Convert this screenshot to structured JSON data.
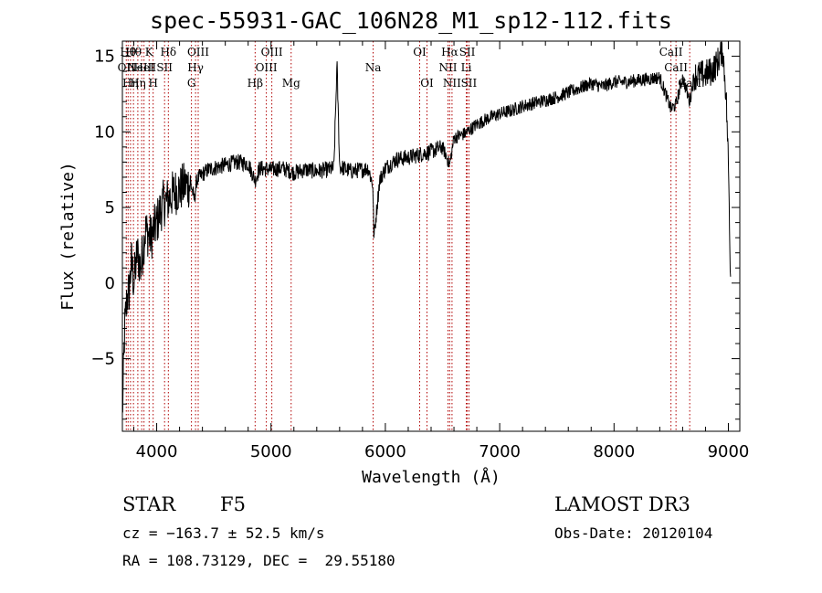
{
  "chart_data": {
    "type": "line",
    "title": "spec-55931-GAC_106N28_M1_sp12-112.fits",
    "xlabel": "Wavelength (Å)",
    "ylabel": "Flux (relative)",
    "xlim": [
      3700,
      9100
    ],
    "ylim": [
      -9.8,
      16
    ],
    "xticks": [
      4000,
      5000,
      6000,
      7000,
      8000,
      9000
    ],
    "yticks": [
      -5,
      0,
      5,
      10,
      15
    ],
    "series": [
      {
        "name": "spectrum",
        "x": [
          3700,
          3720,
          3740,
          3760,
          3780,
          3800,
          3830,
          3860,
          3900,
          3950,
          4000,
          4050,
          4100,
          4150,
          4200,
          4250,
          4300,
          4330,
          4350,
          4400,
          4450,
          4500,
          4600,
          4700,
          4800,
          4861,
          4900,
          5000,
          5100,
          5200,
          5300,
          5400,
          5500,
          5550,
          5577,
          5600,
          5700,
          5800,
          5850,
          5890,
          5900,
          5950,
          6000,
          6100,
          6200,
          6300,
          6400,
          6500,
          6563,
          6600,
          6700,
          6800,
          6900,
          7000,
          7100,
          7200,
          7300,
          7400,
          7500,
          7600,
          7700,
          7800,
          7900,
          8000,
          8100,
          8200,
          8300,
          8400,
          8498,
          8542,
          8600,
          8662,
          8700,
          8800,
          8850,
          8900,
          8950,
          8980,
          9000,
          9020
        ],
        "y": [
          -8.8,
          -3.0,
          -1.0,
          -0.5,
          1.5,
          0.0,
          2.0,
          1.0,
          3.5,
          3.0,
          4.0,
          5.2,
          5.5,
          6.0,
          6.2,
          6.5,
          6.5,
          5.5,
          6.8,
          7.2,
          7.5,
          7.6,
          7.8,
          8.0,
          7.9,
          6.8,
          7.6,
          7.5,
          7.6,
          7.3,
          7.5,
          7.4,
          7.5,
          7.6,
          14.5,
          7.7,
          7.4,
          7.5,
          7.6,
          6.5,
          3.0,
          6.8,
          7.6,
          8.2,
          8.3,
          8.5,
          8.7,
          9.0,
          7.8,
          9.6,
          9.9,
          10.5,
          10.9,
          11.2,
          11.4,
          11.7,
          11.9,
          12.1,
          12.3,
          12.6,
          12.9,
          13.2,
          13.0,
          13.3,
          13.3,
          13.4,
          13.5,
          13.6,
          11.5,
          11.8,
          13.6,
          12.0,
          13.7,
          13.8,
          14.0,
          14.5,
          15.5,
          12.5,
          8.0,
          0.0
        ]
      }
    ],
    "lines": [
      {
        "x": 3734,
        "label": "OII",
        "row": 2
      },
      {
        "x": 3750,
        "label": "Hθ",
        "row": 1
      },
      {
        "x": 3771,
        "label": "Hη",
        "row": 3
      },
      {
        "x": 3797,
        "label": "Hθ",
        "row": 1
      },
      {
        "x": 3835,
        "label": "Hη",
        "row": 3
      },
      {
        "x": 3869,
        "label": "NeIII",
        "row": 2
      },
      {
        "x": 3889,
        "label": "HeI",
        "row": 2
      },
      {
        "x": 3934,
        "label": "K",
        "row": 1
      },
      {
        "x": 3969,
        "label": "H",
        "row": 3
      },
      {
        "x": 4069,
        "label": "SII",
        "row": 2
      },
      {
        "x": 4102,
        "label": "Hδ",
        "row": 1
      },
      {
        "x": 4304,
        "label": "G",
        "row": 3
      },
      {
        "x": 4340,
        "label": "Hγ",
        "row": 2
      },
      {
        "x": 4363,
        "label": "OIII",
        "row": 1
      },
      {
        "x": 4861,
        "label": "Hβ",
        "row": 3
      },
      {
        "x": 4959,
        "label": "OIII",
        "row": 2
      },
      {
        "x": 5007,
        "label": "OIII",
        "row": 1
      },
      {
        "x": 5176,
        "label": "Mg",
        "row": 3
      },
      {
        "x": 5893,
        "label": "Na",
        "row": 2
      },
      {
        "x": 6300,
        "label": "OI",
        "row": 1
      },
      {
        "x": 6364,
        "label": "OI",
        "row": 3
      },
      {
        "x": 6548,
        "label": "NII",
        "row": 2
      },
      {
        "x": 6563,
        "label": "Hα",
        "row": 1
      },
      {
        "x": 6583,
        "label": "NII",
        "row": 3
      },
      {
        "x": 6708,
        "label": "Li",
        "row": 2
      },
      {
        "x": 6716,
        "label": "SII",
        "row": 1
      },
      {
        "x": 6731,
        "label": "SII",
        "row": 3
      },
      {
        "x": 8498,
        "label": "CaII",
        "row": 1
      },
      {
        "x": 8542,
        "label": "CaII",
        "row": 2
      },
      {
        "x": 8662,
        "label": "CaII",
        "row": 3
      }
    ]
  },
  "info": {
    "class_label": "STAR",
    "subclass": "F5",
    "survey": "LAMOST DR3",
    "cz": "cz = −163.7 ± 52.5 km/s",
    "obs_date": "Obs-Date: 20120104",
    "coords": "RA = 108.73129, DEC =  29.55180"
  },
  "colors": {
    "line_marker": "#b00000",
    "spectrum": "#000000"
  }
}
